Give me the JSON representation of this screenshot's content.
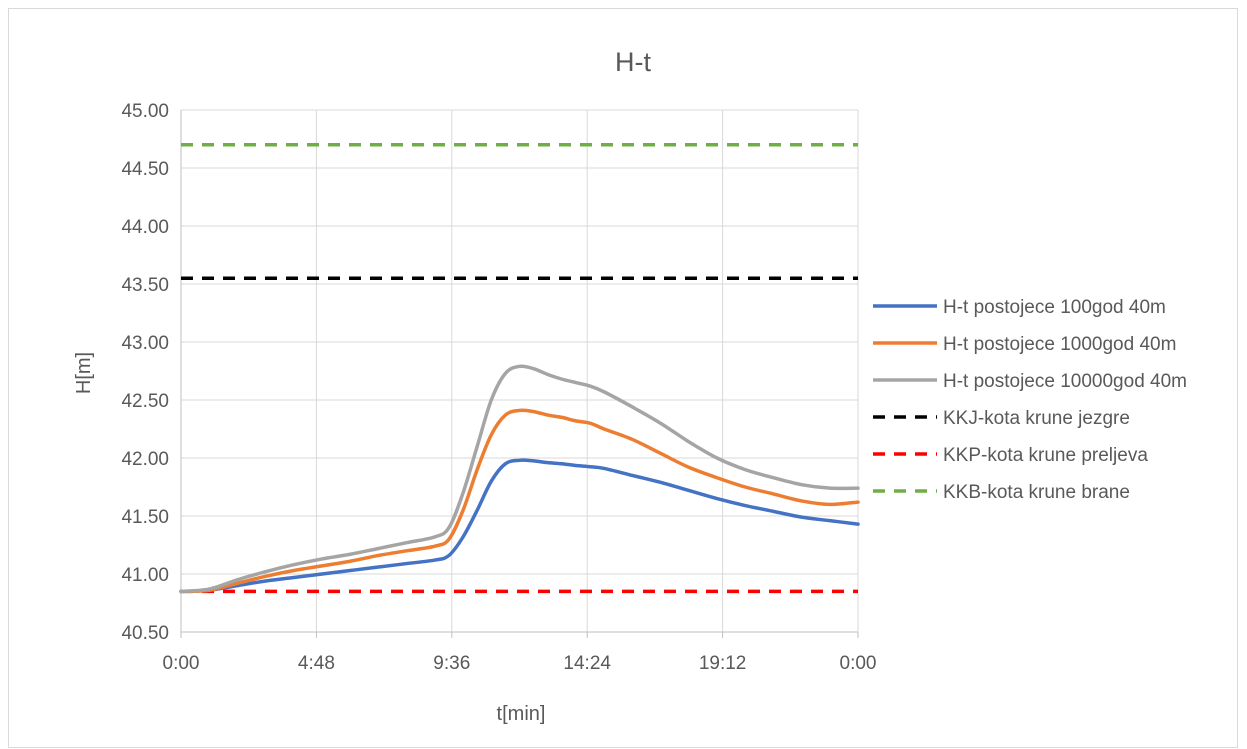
{
  "chart_data": {
    "type": "line",
    "title": "H-t",
    "xlabel": "t[min]",
    "ylabel": "H[m]",
    "ylim": [
      40.5,
      45.0
    ],
    "xlim": [
      0,
      1440
    ],
    "x_tick_values": [
      0,
      288,
      576,
      864,
      1152,
      1440
    ],
    "x_tick_labels": [
      "0:00",
      "4:48",
      "9:36",
      "14:24",
      "19:12",
      "0:00"
    ],
    "y_tick_labels": [
      "40.50",
      "41.00",
      "41.50",
      "42.00",
      "42.50",
      "43.00",
      "43.50",
      "44.00",
      "44.50",
      "45.00"
    ],
    "grid": true,
    "legend_position": "right",
    "series": [
      {
        "name": "H-t postojece 100god 40m",
        "color": "#4472c4",
        "style": "solid",
        "x": [
          0,
          60,
          120,
          180,
          240,
          300,
          360,
          420,
          480,
          540,
          570,
          600,
          630,
          660,
          690,
          720,
          750,
          780,
          810,
          840,
          870,
          900,
          960,
          1020,
          1080,
          1140,
          1200,
          1260,
          1320,
          1380,
          1440
        ],
        "y": [
          40.85,
          40.86,
          40.9,
          40.94,
          40.97,
          41.0,
          41.03,
          41.06,
          41.09,
          41.12,
          41.16,
          41.32,
          41.55,
          41.8,
          41.95,
          41.98,
          41.975,
          41.96,
          41.95,
          41.935,
          41.925,
          41.91,
          41.85,
          41.79,
          41.72,
          41.65,
          41.59,
          41.54,
          41.49,
          41.46,
          41.43
        ]
      },
      {
        "name": "H-t postojece 1000god 40m",
        "color": "#ed7d31",
        "style": "solid",
        "x": [
          0,
          60,
          120,
          180,
          240,
          300,
          360,
          420,
          480,
          540,
          570,
          600,
          630,
          660,
          690,
          720,
          750,
          780,
          810,
          840,
          870,
          900,
          960,
          1020,
          1080,
          1140,
          1200,
          1260,
          1320,
          1380,
          1440
        ],
        "y": [
          40.85,
          40.86,
          40.92,
          40.98,
          41.03,
          41.07,
          41.11,
          41.16,
          41.2,
          41.24,
          41.3,
          41.55,
          41.9,
          42.2,
          42.37,
          42.41,
          42.4,
          42.37,
          42.35,
          42.32,
          42.3,
          42.25,
          42.16,
          42.04,
          41.92,
          41.83,
          41.75,
          41.69,
          41.63,
          41.6,
          41.62
        ]
      },
      {
        "name": "H-t postojece 10000god 40m",
        "color": "#a5a5a5",
        "style": "solid",
        "x": [
          0,
          60,
          120,
          180,
          240,
          300,
          360,
          420,
          480,
          540,
          570,
          600,
          630,
          660,
          690,
          720,
          750,
          780,
          810,
          840,
          870,
          900,
          960,
          1020,
          1080,
          1140,
          1200,
          1260,
          1320,
          1380,
          1440
        ],
        "y": [
          40.85,
          40.87,
          40.95,
          41.02,
          41.08,
          41.13,
          41.17,
          41.22,
          41.27,
          41.32,
          41.4,
          41.7,
          42.1,
          42.5,
          42.73,
          42.79,
          42.77,
          42.72,
          42.68,
          42.65,
          42.62,
          42.57,
          42.44,
          42.3,
          42.14,
          42.0,
          41.9,
          41.83,
          41.77,
          41.74,
          41.74
        ]
      },
      {
        "name": "KKJ-kota krune jezgre",
        "color": "#000000",
        "style": "dashed",
        "x": [
          0,
          1440
        ],
        "y": [
          43.55,
          43.55
        ]
      },
      {
        "name": "KKP-kota krune preljeva",
        "color": "#ff0000",
        "style": "dashed",
        "x": [
          0,
          1440
        ],
        "y": [
          40.85,
          40.85
        ]
      },
      {
        "name": "KKB-kota krune brane",
        "color": "#70ad47",
        "style": "dashed",
        "x": [
          0,
          1440
        ],
        "y": [
          44.7,
          44.7
        ]
      }
    ]
  }
}
